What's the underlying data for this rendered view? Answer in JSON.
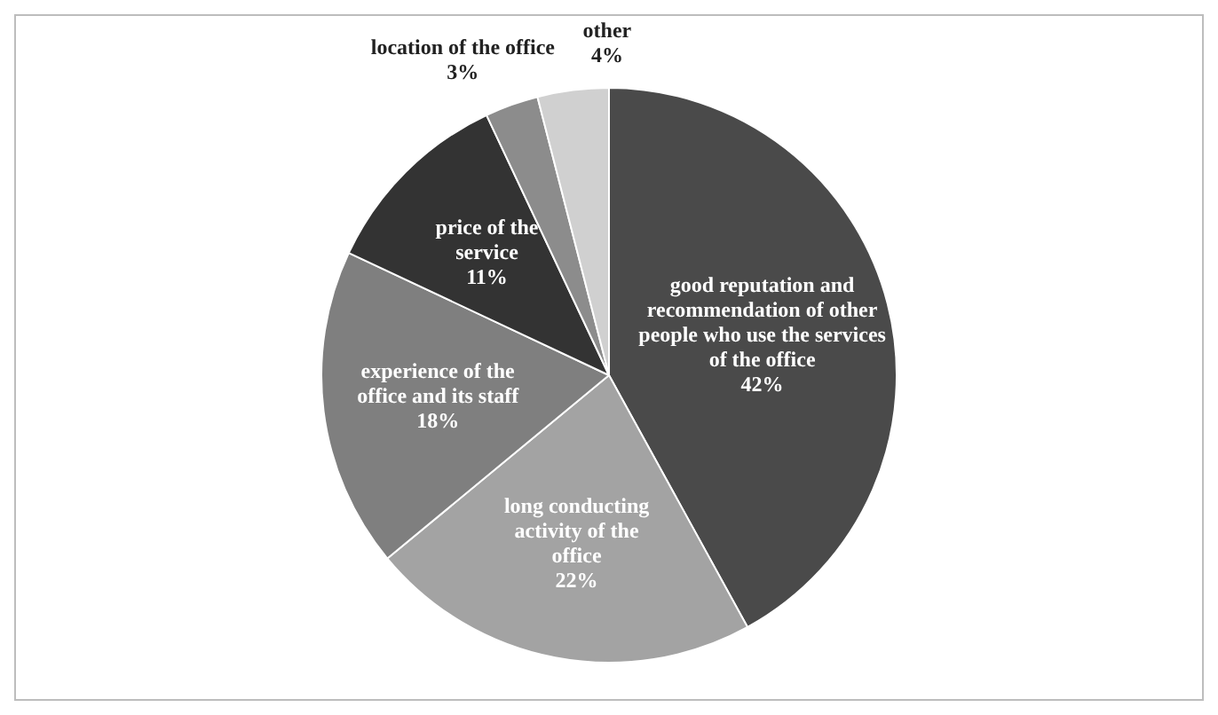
{
  "chart_data": {
    "type": "pie",
    "categories": [
      "good reputation and recommendation of other people who use the services of the office",
      "long conducting activity of the office",
      "experience of the office and its staff",
      "price of the service",
      "location of the office",
      "other"
    ],
    "values": [
      42,
      22,
      18,
      11,
      3,
      4
    ],
    "value_labels": [
      "42%",
      "22%",
      "18%",
      "11%",
      "3%",
      "4%"
    ],
    "colors": [
      "#4a4a4a",
      "#a3a3a3",
      "#7f7f7f",
      "#333333",
      "#8c8c8c",
      "#d0d0d0"
    ],
    "legend": false
  }
}
